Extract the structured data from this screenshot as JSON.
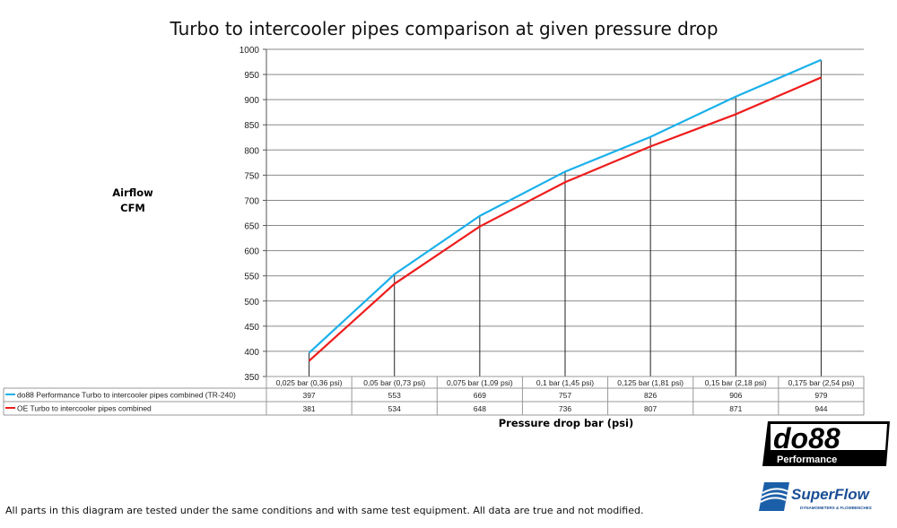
{
  "chart_data": {
    "type": "line",
    "title": "Turbo to intercooler pipes comparison at given pressure drop",
    "ylabel": "Airflow CFM",
    "xlabel": "Pressure drop bar (psi)",
    "ylim": [
      350,
      1000
    ],
    "yticks": [
      350,
      400,
      450,
      500,
      550,
      600,
      650,
      700,
      750,
      800,
      850,
      900,
      950,
      1000
    ],
    "grid": true,
    "legend": "data-table-left",
    "categories": [
      "0,025 bar (0,36 psi)",
      "0,05 bar (0,73 psi)",
      "0,075 bar (1,09 psi)",
      "0,1 bar (1,45 psi)",
      "0,125 bar (1,81 psi)",
      "0,15 bar (2,18 psi)",
      "0,175 bar (2,54 psi)"
    ],
    "series": [
      {
        "name": "do88 Performance Turbo to intercooler pipes combined (TR-240)",
        "color": "#1ab0ea",
        "values": [
          397,
          553,
          669,
          757,
          826,
          906,
          979
        ]
      },
      {
        "name": "OE Turbo to intercooler pipes combined",
        "color": "#ee1c1c",
        "values": [
          381,
          534,
          648,
          736,
          807,
          871,
          944
        ]
      }
    ]
  },
  "note": "All parts in this diagram are tested under the same conditions and with same test equipment. All data are true and not modified.",
  "logos": {
    "do88": "do88",
    "do88_sub": "Performance",
    "superflow": "SuperFlow",
    "superflow_sub": "DYNAMOMETERS & FLOWBENCHES"
  }
}
